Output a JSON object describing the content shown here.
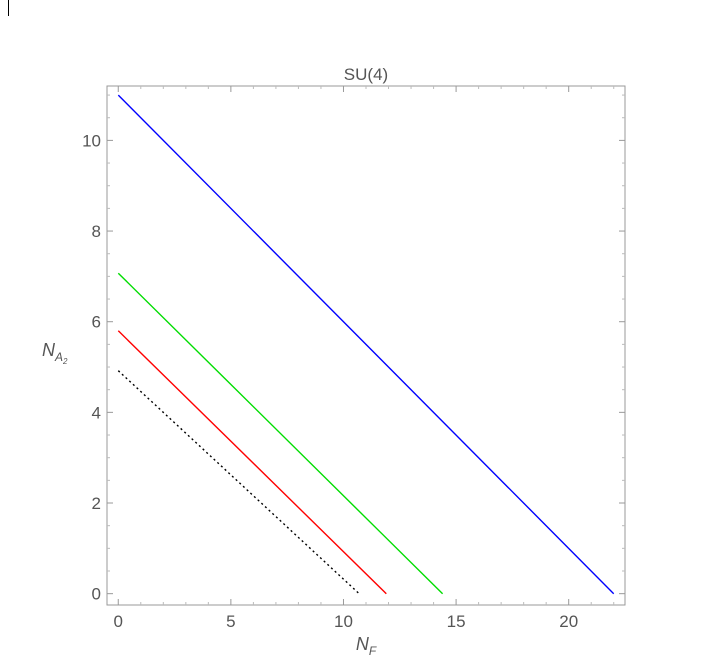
{
  "chart_data": {
    "type": "line",
    "title": "SU(4)",
    "xlabel": "N",
    "xlabel_sub": "F",
    "ylabel": "N",
    "ylabel_sub": "A",
    "ylabel_subsub": "2",
    "xlim": [
      -0.5,
      22.5
    ],
    "ylim": [
      -0.25,
      11.2
    ],
    "xticks": [
      0,
      5,
      10,
      15,
      20
    ],
    "yticks": [
      0,
      2,
      4,
      6,
      8,
      10
    ],
    "xtick_labels": [
      "0",
      "5",
      "10",
      "15",
      "20"
    ],
    "ytick_labels": [
      "0",
      "2",
      "4",
      "6",
      "8",
      "10"
    ],
    "grid": false,
    "series": [
      {
        "color": "#0000ff",
        "style": "solid",
        "x": [
          0,
          22
        ],
        "y": [
          11,
          0
        ]
      },
      {
        "color": "#00dd00",
        "style": "solid",
        "x": [
          0,
          14.4
        ],
        "y": [
          7.07,
          0
        ]
      },
      {
        "color": "#ff0000",
        "style": "solid",
        "x": [
          0,
          11.9
        ],
        "y": [
          5.8,
          0
        ]
      },
      {
        "color": "#000000",
        "style": "dotted",
        "x": [
          0,
          10.7
        ],
        "y": [
          4.92,
          0
        ]
      }
    ]
  }
}
